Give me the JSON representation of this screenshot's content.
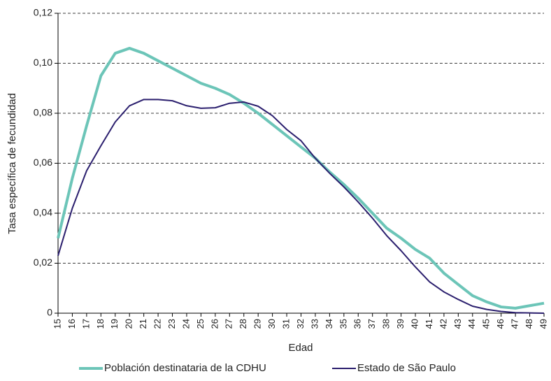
{
  "chart_data": {
    "type": "line",
    "y_label": "Tasa específica de fecundidad",
    "x_label": "Edad",
    "categories": [
      "15",
      "16",
      "17",
      "18",
      "19",
      "20",
      "21",
      "22",
      "23",
      "24",
      "25",
      "26",
      "27",
      "28",
      "29",
      "30",
      "31",
      "32",
      "33",
      "34",
      "35",
      "36",
      "37",
      "38",
      "39",
      "40",
      "41",
      "42",
      "43",
      "44",
      "45",
      "46",
      "47",
      "48",
      "49"
    ],
    "series": [
      {
        "name": "Población destinataria de la CDHU",
        "color": "#6cc5b8",
        "values": [
          0.03,
          0.054,
          0.075,
          0.095,
          0.104,
          0.106,
          0.104,
          0.101,
          0.098,
          0.095,
          0.092,
          0.09,
          0.0875,
          0.084,
          0.08,
          0.0755,
          0.071,
          0.0665,
          0.062,
          0.0565,
          0.0515,
          0.046,
          0.04,
          0.034,
          0.03,
          0.0255,
          0.022,
          0.016,
          0.0115,
          0.007,
          0.0045,
          0.0025,
          0.002,
          0.003,
          0.004
        ]
      },
      {
        "name": "Estado de São Paulo",
        "color": "#2b1f6e",
        "values": [
          0.023,
          0.042,
          0.057,
          0.067,
          0.0765,
          0.083,
          0.0855,
          0.0855,
          0.085,
          0.083,
          0.082,
          0.0822,
          0.084,
          0.0845,
          0.0828,
          0.079,
          0.0735,
          0.069,
          0.062,
          0.056,
          0.0505,
          0.0445,
          0.038,
          0.031,
          0.025,
          0.0185,
          0.0125,
          0.0085,
          0.0055,
          0.0028,
          0.0015,
          0.0007,
          0.0002,
          0.0001,
          0.0
        ]
      }
    ],
    "ylim": [
      0,
      0.12
    ],
    "yticks": [
      0,
      {
        "value": 0.02,
        "label": "0,02"
      },
      {
        "value": 0.04,
        "label": "0,04"
      },
      {
        "value": 0.06,
        "label": "0,06"
      },
      {
        "value": 0.08,
        "label": "0,08"
      },
      {
        "value": 0.1,
        "label": "0,10"
      },
      {
        "value": 0.12,
        "label": "0,12"
      }
    ],
    "grid": true,
    "legend": "bottom"
  }
}
